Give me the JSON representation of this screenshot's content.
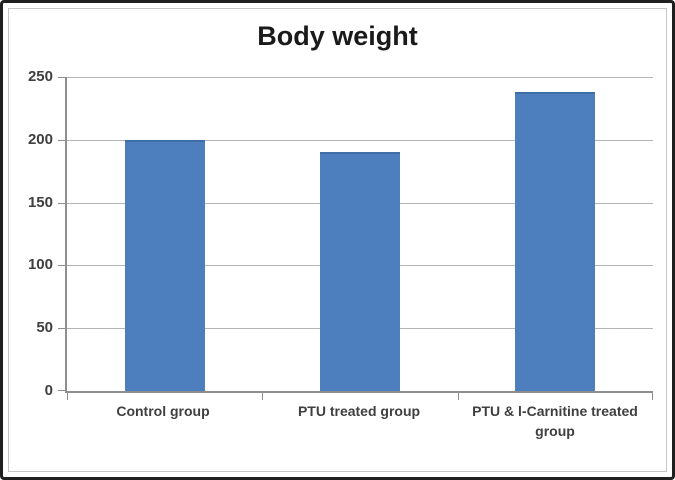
{
  "chart_data": {
    "type": "bar",
    "title": "Body weight",
    "categories": [
      "Control group",
      "PTU treated group",
      "PTU & l-Carnitine treated group"
    ],
    "values": [
      200,
      190,
      238
    ],
    "xlabel": "",
    "ylabel": "",
    "ylim": [
      0,
      250
    ],
    "yticks": [
      0,
      50,
      100,
      150,
      200,
      250
    ],
    "grid": "horizontal",
    "legend": "none",
    "colors": {
      "bar_fill": "#4d7ebd",
      "bar_edge": "#3e6ea5",
      "gridline": "#b3b3b3",
      "axis": "#8e8e8e",
      "tick_label": "#3f3f3f",
      "title": "#1a1a1a",
      "chart_border": "#c6c6c6",
      "outer_frame": "#1f1f1f",
      "background": "#ffffff"
    }
  }
}
